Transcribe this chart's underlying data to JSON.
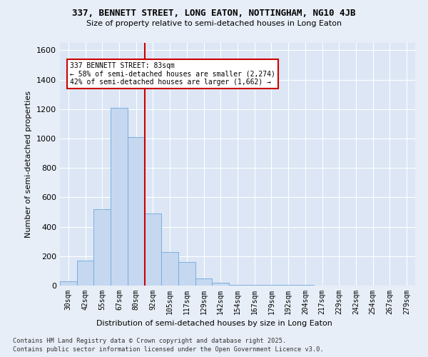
{
  "title_line1": "337, BENNETT STREET, LONG EATON, NOTTINGHAM, NG10 4JB",
  "title_line2": "Size of property relative to semi-detached houses in Long Eaton",
  "xlabel": "Distribution of semi-detached houses by size in Long Eaton",
  "ylabel": "Number of semi-detached properties",
  "bins": [
    "30sqm",
    "42sqm",
    "55sqm",
    "67sqm",
    "80sqm",
    "92sqm",
    "105sqm",
    "117sqm",
    "129sqm",
    "142sqm",
    "154sqm",
    "167sqm",
    "179sqm",
    "192sqm",
    "204sqm",
    "217sqm",
    "229sqm",
    "242sqm",
    "254sqm",
    "267sqm",
    "279sqm"
  ],
  "bar_values": [
    30,
    170,
    520,
    1210,
    1010,
    490,
    230,
    160,
    50,
    20,
    5,
    5,
    5,
    5,
    5,
    0,
    0,
    0,
    0,
    0,
    0
  ],
  "bar_color": "#c5d8f0",
  "bar_edge_color": "#6fa8dc",
  "vline_color": "#cc0000",
  "annotation_title": "337 BENNETT STREET: 83sqm",
  "annotation_line1": "← 58% of semi-detached houses are smaller (2,274)",
  "annotation_line2": "42% of semi-detached houses are larger (1,662) →",
  "annotation_box_edge_color": "#cc0000",
  "ylim": [
    0,
    1650
  ],
  "yticks": [
    0,
    200,
    400,
    600,
    800,
    1000,
    1200,
    1400,
    1600
  ],
  "footer1": "Contains HM Land Registry data © Crown copyright and database right 2025.",
  "footer2": "Contains public sector information licensed under the Open Government Licence v3.0.",
  "bg_color": "#e8eef7",
  "plot_bg_color": "#dce6f5"
}
